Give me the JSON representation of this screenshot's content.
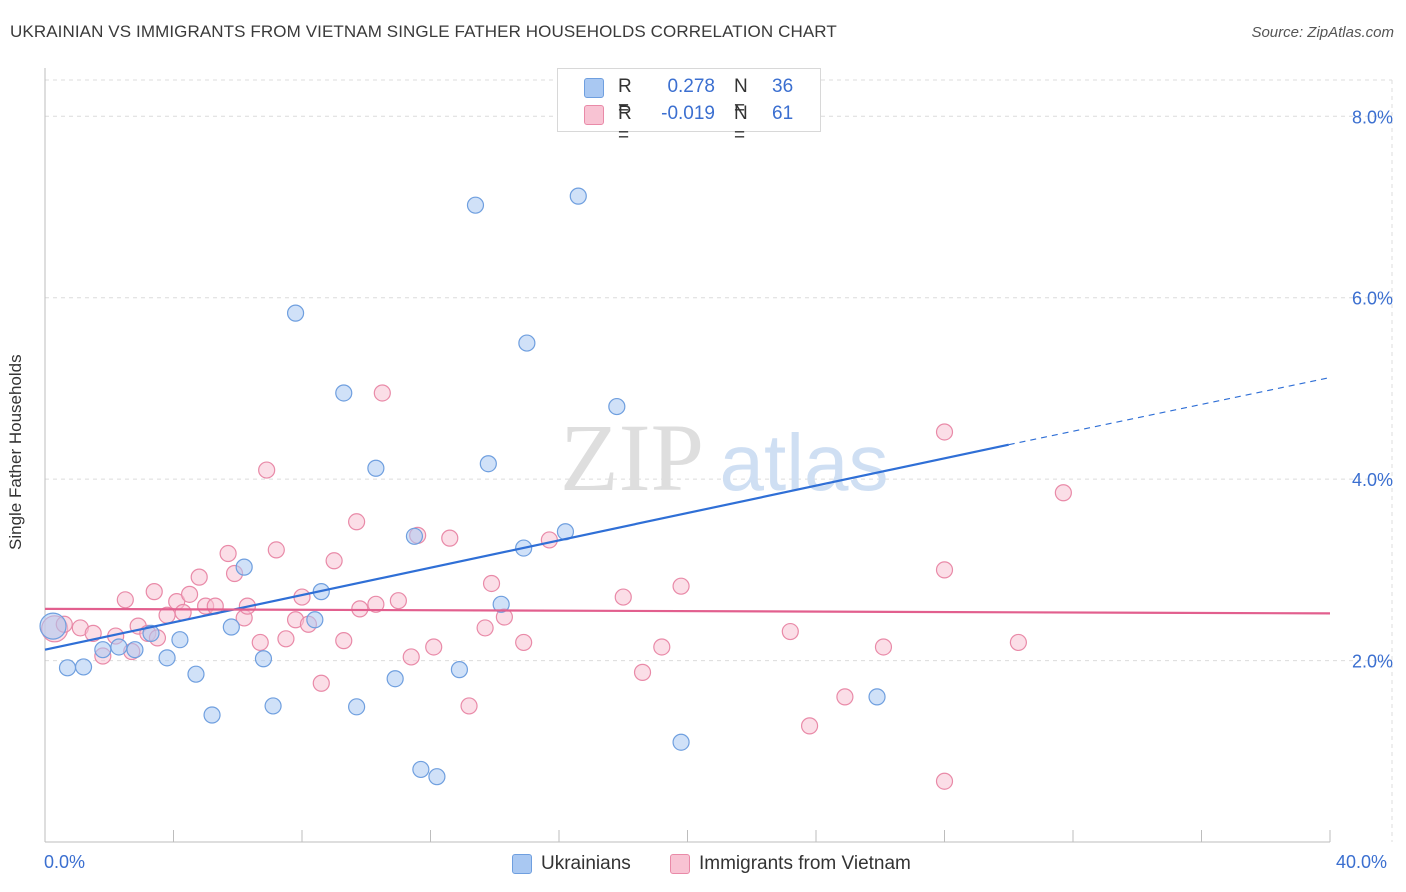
{
  "title": "UKRAINIAN VS IMMIGRANTS FROM VIETNAM SINGLE FATHER HOUSEHOLDS CORRELATION CHART",
  "source": "Source: ZipAtlas.com",
  "watermark": {
    "zip": "ZIP",
    "atlas": "atlas"
  },
  "legend": {
    "rows": [
      {
        "r_label": "R =",
        "r_value": "0.278",
        "n_label": "N =",
        "n_value": "36",
        "color": "#a9c8f2",
        "border": "#6f9fdf"
      },
      {
        "r_label": "R =",
        "r_value": "-0.019",
        "n_label": "N =",
        "n_value": "61",
        "color": "#f8c3d3",
        "border": "#e98aa8"
      }
    ]
  },
  "bottom_legend": [
    {
      "label": "Ukrainians",
      "color": "#a9c8f2",
      "border": "#6f9fdf"
    },
    {
      "label": "Immigrants from Vietnam",
      "color": "#f8c3d3",
      "border": "#e98aa8"
    }
  ],
  "colors": {
    "blue_line": "#2f6fd6",
    "pink_line": "#e25f8e",
    "blue_fill": "#a9c8f2",
    "pink_fill": "#f8c3d3",
    "grid": "#dcdcdc",
    "tick_text": "#3b6fd0"
  },
  "chart_data": {
    "type": "scatter",
    "title": "UKRAINIAN VS IMMIGRANTS FROM VIETNAM SINGLE FATHER HOUSEHOLDS CORRELATION CHART",
    "xlabel": "",
    "ylabel": "Single Father Households",
    "xlim": [
      0,
      40
    ],
    "ylim": [
      0,
      8.4
    ],
    "x_tick_labels": [
      "0.0%",
      "40.0%"
    ],
    "y_ticks": [
      2,
      4,
      6,
      8
    ],
    "y_tick_labels": [
      "2.0%",
      "4.0%",
      "6.0%",
      "8.0%"
    ],
    "grid": true,
    "legend_position": "top-center",
    "series": [
      {
        "name": "Ukrainians",
        "color": "#a9c8f2",
        "points": [
          [
            0.25,
            2.38
          ],
          [
            0.7,
            1.92
          ],
          [
            1.2,
            1.93
          ],
          [
            1.8,
            2.12
          ],
          [
            2.3,
            2.15
          ],
          [
            2.8,
            2.12
          ],
          [
            3.3,
            2.3
          ],
          [
            3.8,
            2.03
          ],
          [
            4.2,
            2.23
          ],
          [
            4.7,
            1.85
          ],
          [
            5.2,
            1.4
          ],
          [
            5.8,
            2.37
          ],
          [
            6.2,
            3.03
          ],
          [
            6.8,
            2.02
          ],
          [
            7.1,
            1.5
          ],
          [
            7.8,
            5.83
          ],
          [
            8.4,
            2.45
          ],
          [
            8.6,
            2.76
          ],
          [
            9.3,
            4.95
          ],
          [
            9.7,
            1.49
          ],
          [
            10.3,
            4.12
          ],
          [
            10.9,
            1.8
          ],
          [
            11.5,
            3.37
          ],
          [
            11.7,
            0.8
          ],
          [
            12.2,
            0.72
          ],
          [
            12.9,
            1.9
          ],
          [
            13.4,
            7.02
          ],
          [
            13.8,
            4.17
          ],
          [
            14.2,
            2.62
          ],
          [
            14.9,
            3.24
          ],
          [
            15.0,
            5.5
          ],
          [
            16.2,
            3.42
          ],
          [
            16.6,
            7.12
          ],
          [
            17.8,
            4.8
          ],
          [
            19.8,
            1.1
          ],
          [
            25.9,
            1.6
          ]
        ],
        "trend": {
          "x": [
            0,
            30.0
          ],
          "y": [
            2.12,
            4.38
          ],
          "dashed_to": [
            40.0,
            5.12
          ]
        }
      },
      {
        "name": "Immigrants from Vietnam",
        "color": "#f8c3d3",
        "points": [
          [
            0.3,
            2.35
          ],
          [
            0.6,
            2.4
          ],
          [
            1.1,
            2.36
          ],
          [
            1.5,
            2.3
          ],
          [
            1.8,
            2.05
          ],
          [
            2.2,
            2.27
          ],
          [
            2.5,
            2.67
          ],
          [
            2.7,
            2.1
          ],
          [
            2.9,
            2.38
          ],
          [
            3.2,
            2.3
          ],
          [
            3.4,
            2.76
          ],
          [
            3.5,
            2.25
          ],
          [
            3.8,
            2.5
          ],
          [
            4.1,
            2.65
          ],
          [
            4.3,
            2.53
          ],
          [
            4.5,
            2.73
          ],
          [
            4.8,
            2.92
          ],
          [
            5.0,
            2.6
          ],
          [
            5.3,
            2.6
          ],
          [
            5.7,
            3.18
          ],
          [
            5.9,
            2.96
          ],
          [
            6.2,
            2.47
          ],
          [
            6.3,
            2.6
          ],
          [
            6.7,
            2.2
          ],
          [
            6.9,
            4.1
          ],
          [
            7.2,
            3.22
          ],
          [
            7.5,
            2.24
          ],
          [
            7.8,
            2.45
          ],
          [
            8.0,
            2.7
          ],
          [
            8.2,
            2.4
          ],
          [
            8.6,
            1.75
          ],
          [
            9.0,
            3.1
          ],
          [
            9.3,
            2.22
          ],
          [
            9.7,
            3.53
          ],
          [
            9.8,
            2.57
          ],
          [
            10.3,
            2.62
          ],
          [
            10.5,
            4.95
          ],
          [
            11.0,
            2.66
          ],
          [
            11.4,
            2.04
          ],
          [
            11.6,
            3.38
          ],
          [
            12.1,
            2.15
          ],
          [
            12.6,
            3.35
          ],
          [
            13.2,
            1.5
          ],
          [
            13.7,
            2.36
          ],
          [
            13.9,
            2.85
          ],
          [
            14.3,
            2.48
          ],
          [
            14.9,
            2.2
          ],
          [
            15.7,
            3.33
          ],
          [
            18.0,
            2.7
          ],
          [
            18.6,
            1.87
          ],
          [
            19.2,
            2.15
          ],
          [
            19.8,
            2.82
          ],
          [
            23.2,
            2.32
          ],
          [
            23.8,
            1.28
          ],
          [
            24.9,
            1.6
          ],
          [
            26.1,
            2.15
          ],
          [
            28.0,
            0.67
          ],
          [
            28.0,
            3.0
          ],
          [
            28.0,
            4.52
          ],
          [
            30.3,
            2.2
          ],
          [
            31.7,
            3.85
          ]
        ],
        "trend": {
          "x": [
            0,
            40.0
          ],
          "y": [
            2.57,
            2.52
          ]
        }
      }
    ]
  }
}
